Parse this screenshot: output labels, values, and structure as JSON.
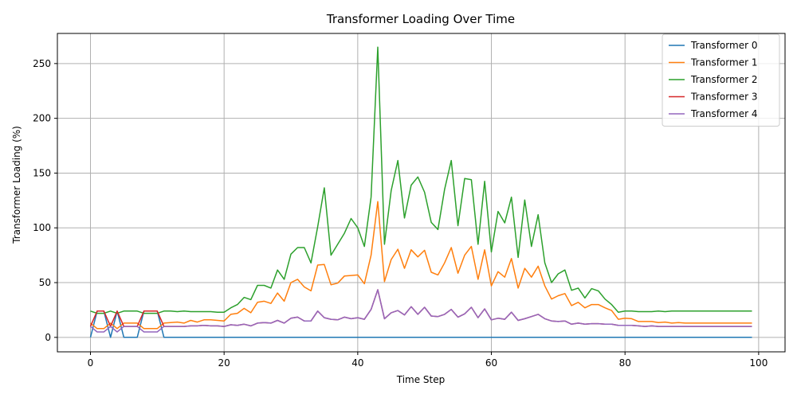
{
  "chart_data": {
    "type": "line",
    "title": "Transformer Loading Over Time",
    "xlabel": "Time Step",
    "ylabel": "Transformer Loading (%)",
    "xlim": [
      -4.95,
      103.95
    ],
    "ylim": [
      -13.2,
      277.5
    ],
    "xticks": [
      0,
      20,
      40,
      60,
      80,
      100
    ],
    "yticks": [
      0,
      50,
      100,
      150,
      200,
      250
    ],
    "grid": true,
    "legend_position": "top-right",
    "x": [
      0,
      1,
      2,
      3,
      4,
      5,
      6,
      7,
      8,
      9,
      10,
      11,
      12,
      13,
      14,
      15,
      16,
      17,
      18,
      19,
      20,
      21,
      22,
      23,
      24,
      25,
      26,
      27,
      28,
      29,
      30,
      31,
      32,
      33,
      34,
      35,
      36,
      37,
      38,
      39,
      40,
      41,
      42,
      43,
      44,
      45,
      46,
      47,
      48,
      49,
      50,
      51,
      52,
      53,
      54,
      55,
      56,
      57,
      58,
      59,
      60,
      61,
      62,
      63,
      64,
      65,
      66,
      67,
      68,
      69,
      70,
      71,
      72,
      73,
      74,
      75,
      76,
      77,
      78,
      79,
      80,
      81,
      82,
      83,
      84,
      85,
      86,
      87,
      88,
      89,
      90,
      91,
      92,
      93,
      94,
      95,
      96,
      97,
      98,
      99
    ],
    "series": [
      {
        "name": "Transformer 0",
        "color": "#1f77b4",
        "values": [
          0,
          24,
          24,
          0,
          24,
          0,
          0,
          0,
          24,
          24,
          24,
          0,
          0,
          0,
          0,
          0,
          0,
          0,
          0,
          0,
          0,
          0,
          0,
          0,
          0,
          0,
          0,
          0,
          0,
          0,
          0,
          0,
          0,
          0,
          0,
          0,
          0,
          0,
          0,
          0,
          0,
          0,
          0,
          0,
          0,
          0,
          0,
          0,
          0,
          0,
          0,
          0,
          0,
          0,
          0,
          0,
          0,
          0,
          0,
          0,
          0,
          0,
          0,
          0,
          0,
          0,
          0,
          0,
          0,
          0,
          0,
          0,
          0,
          0,
          0,
          0,
          0,
          0,
          0,
          0,
          0,
          0,
          0,
          0,
          0,
          0,
          0,
          0,
          0,
          0,
          0,
          0,
          0,
          0,
          0,
          0,
          0,
          0,
          0,
          0
        ]
      },
      {
        "name": "Transformer 1",
        "color": "#ff7f0e",
        "values": [
          13,
          8,
          8,
          13,
          8,
          13,
          13,
          13,
          8,
          8,
          8,
          13,
          13.5,
          14,
          13,
          15.5,
          14,
          16,
          16,
          15.5,
          15,
          21,
          22,
          26.5,
          22.5,
          32,
          33,
          31,
          40.5,
          33,
          50,
          53,
          46,
          42.5,
          66,
          66.5,
          48,
          49.5,
          56,
          56.5,
          57,
          49,
          75,
          124,
          51,
          71,
          80.5,
          63,
          80,
          73.5,
          79.5,
          59.5,
          57,
          68,
          82,
          58.5,
          75,
          83,
          53,
          80,
          47,
          60,
          55,
          72,
          45,
          63,
          55,
          65,
          47,
          35,
          38,
          40,
          29,
          32,
          27,
          30,
          30,
          27,
          24.5,
          16.5,
          17.5,
          17,
          14.5,
          14.5,
          14.5,
          13.5,
          14,
          13,
          13.5,
          13,
          13,
          13,
          13,
          13,
          13,
          13,
          13,
          13,
          13,
          13
        ]
      },
      {
        "name": "Transformer 2",
        "color": "#2ca02c",
        "values": [
          24,
          22,
          22,
          24,
          22,
          24,
          24,
          24,
          22,
          22,
          22,
          24,
          24,
          23.5,
          24,
          23.5,
          23.5,
          23.5,
          23.5,
          23,
          23,
          27,
          30,
          36.5,
          34.5,
          47.5,
          47.5,
          45,
          61.5,
          53,
          76,
          82,
          82,
          68,
          101,
          136.5,
          75,
          85,
          95,
          108.5,
          100,
          83,
          128,
          265,
          85,
          134,
          161.5,
          109,
          139,
          146.5,
          132.5,
          105,
          98.5,
          135,
          161.5,
          102,
          145,
          144,
          85,
          142.5,
          78,
          115,
          104.5,
          128,
          73,
          125.5,
          83,
          112,
          68,
          50,
          58,
          61.5,
          43,
          45,
          36,
          44.5,
          42.5,
          35,
          30,
          23,
          24,
          24,
          23.5,
          23.5,
          23.5,
          24,
          23.5,
          24,
          24,
          24,
          24,
          24,
          24,
          24,
          24,
          24,
          24,
          24,
          24,
          24
        ]
      },
      {
        "name": "Transformer 3",
        "color": "#d62728",
        "values": [
          10,
          24,
          24,
          10,
          24,
          10,
          10,
          10,
          24,
          24,
          24,
          10,
          10,
          10,
          10,
          10.5,
          10.5,
          11,
          10.5,
          10.5,
          10,
          11.5,
          11,
          12,
          10.5,
          13,
          13.5,
          13,
          15.5,
          13,
          17.5,
          18.5,
          15,
          15,
          24,
          18,
          16.5,
          16,
          18.5,
          17,
          18,
          16.5,
          25.5,
          43.5,
          17,
          22.5,
          24.5,
          20.5,
          28,
          21,
          27.5,
          19.5,
          19,
          21,
          25.5,
          18.5,
          21.5,
          27.5,
          18,
          26,
          16,
          17.5,
          16.5,
          23,
          15.5,
          17,
          19,
          21,
          17,
          15,
          14.5,
          15,
          12,
          13,
          12,
          12.5,
          12.5,
          12,
          12,
          11,
          11,
          11,
          10.5,
          10,
          10.5,
          10,
          10,
          10,
          10,
          10,
          10,
          10,
          10,
          10,
          10,
          10,
          10,
          10,
          10,
          10
        ]
      },
      {
        "name": "Transformer 4",
        "color": "#9467bd",
        "values": [
          10,
          5,
          5,
          10,
          5,
          10,
          10,
          10,
          5,
          5,
          5,
          10,
          10,
          10,
          10,
          10.5,
          10.5,
          11,
          10.5,
          10.5,
          10,
          11.5,
          11,
          12,
          10.5,
          13,
          13.5,
          13,
          15.5,
          13,
          17.5,
          18.5,
          15,
          15,
          24,
          18,
          16.5,
          16,
          18.5,
          17,
          18,
          16.5,
          25.5,
          43.5,
          17,
          22.5,
          24.5,
          20.5,
          28,
          21,
          27.5,
          19.5,
          19,
          21,
          25.5,
          18.5,
          21.5,
          27.5,
          18,
          26,
          16,
          17.5,
          16.5,
          23,
          15.5,
          17,
          19,
          21,
          17,
          15,
          14.5,
          15,
          12,
          13,
          12,
          12.5,
          12.5,
          12,
          12,
          11,
          11,
          11,
          10.5,
          10,
          10.5,
          10,
          10,
          10,
          10,
          10,
          10,
          10,
          10,
          10,
          10,
          10,
          10,
          10,
          10,
          10
        ]
      }
    ]
  }
}
